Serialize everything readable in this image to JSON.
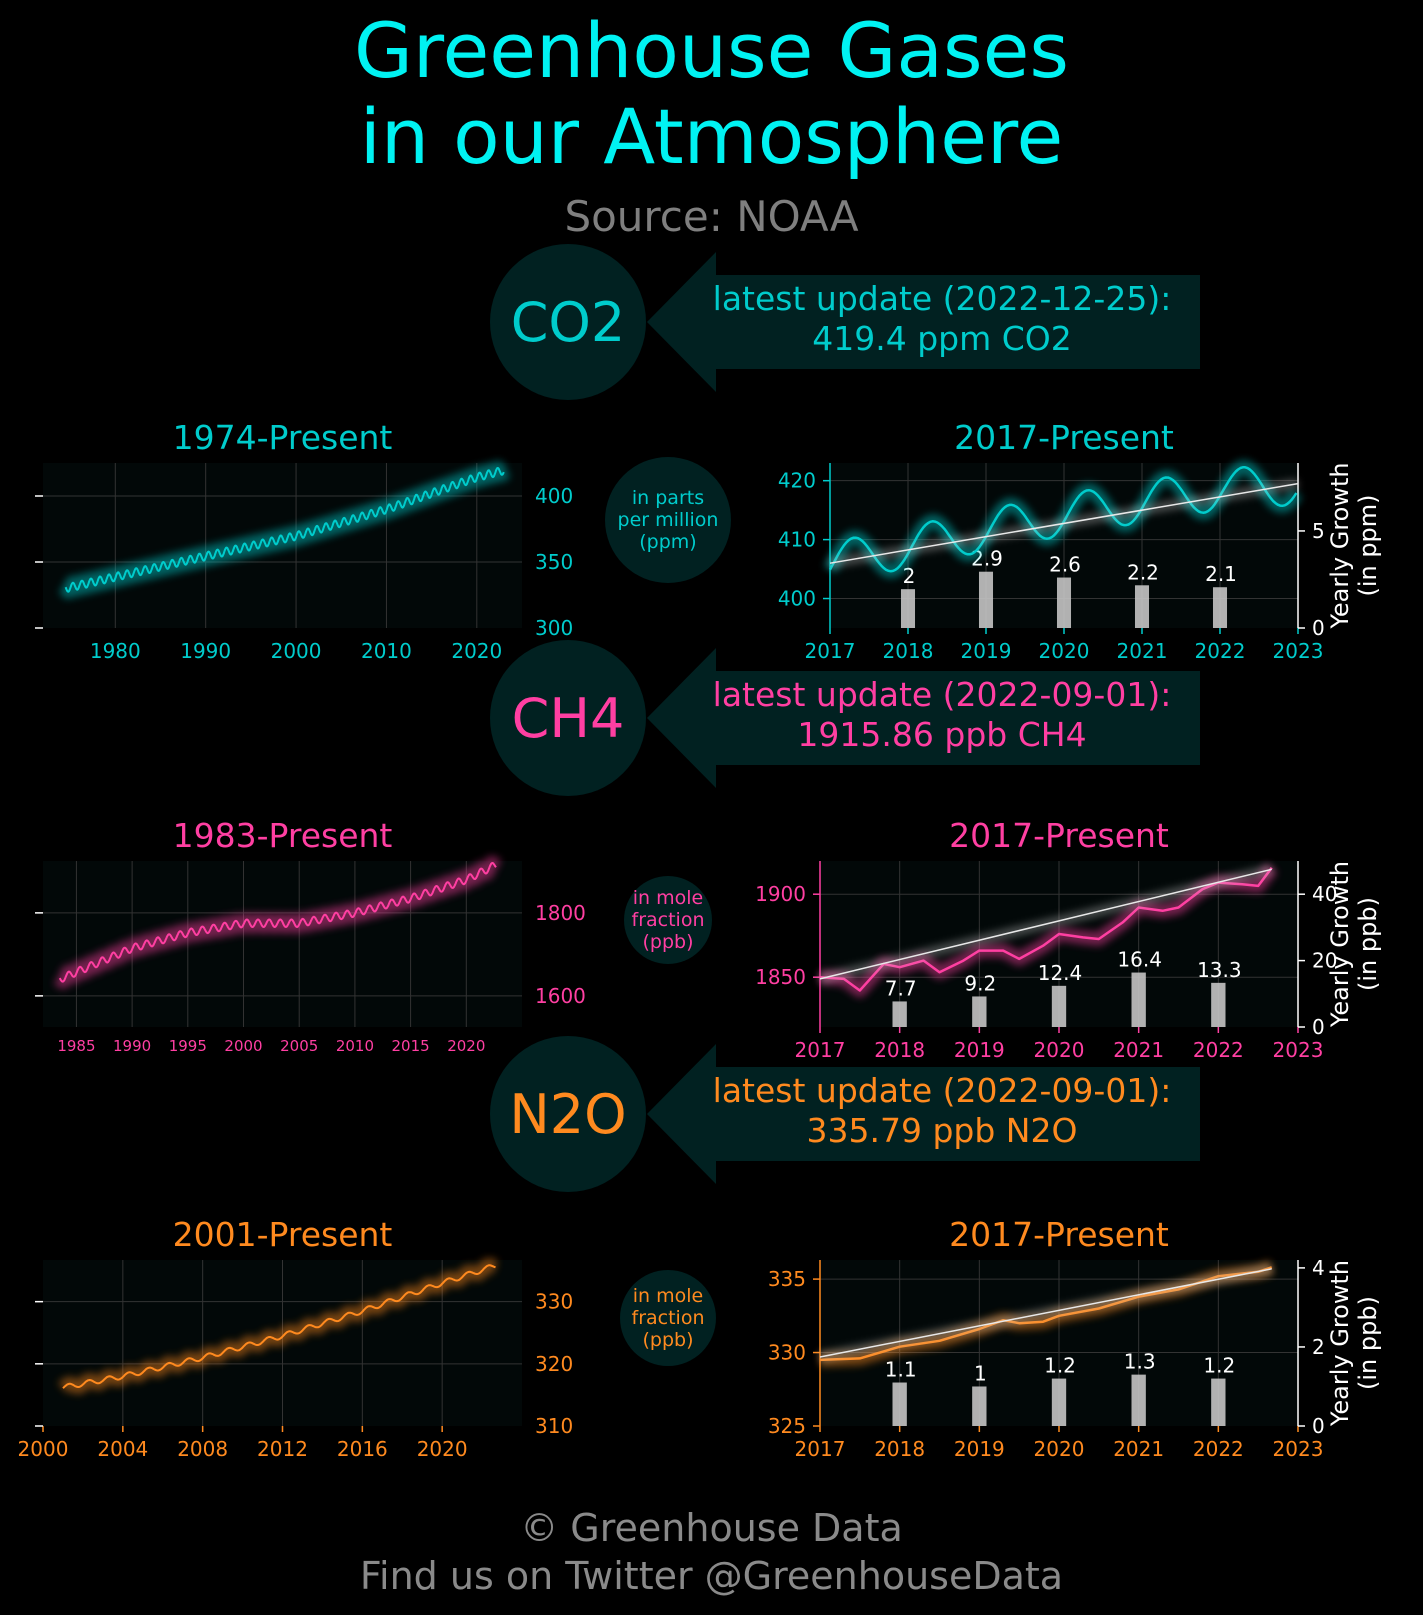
{
  "header": {
    "title_line1": "Greenhouse Gases",
    "title_line2": "in our Atmosphere",
    "source": "Source: NOAA"
  },
  "footer": {
    "copyright": "© Greenhouse Data",
    "twitter": "Find us on Twitter @GreenhouseData"
  },
  "theme": {
    "background": "#000000",
    "panel_bg": "#020808",
    "badge_bg": "#012121",
    "grid": "#333333",
    "growth_bar": "#c4c4c4",
    "growth_text": "#ffffff",
    "title_color": "#00f2f2",
    "muted_text": "#7f7f7f"
  },
  "gases": [
    {
      "id": "co2",
      "label": "CO2",
      "color": "#00cccc",
      "update_line1": "latest update (2022-12-25):",
      "update_line2": "419.4 ppm CO2",
      "unit_lines": [
        "in parts",
        "per million",
        "(ppm)"
      ],
      "long_title": "1974-Present",
      "short_title": "2017-Present",
      "growth_axis_label": [
        "Yearly Growth",
        "(in ppm)"
      ]
    },
    {
      "id": "ch4",
      "label": "CH4",
      "color": "#ff3fa2",
      "update_line1": "latest update (2022-09-01):",
      "update_line2": "1915.86 ppb CH4",
      "unit_lines": [
        "in mole",
        "fraction",
        "(ppb)"
      ],
      "long_title": "1983-Present",
      "short_title": "2017-Present",
      "growth_axis_label": [
        "Yearly Growth",
        "(in ppb)"
      ]
    },
    {
      "id": "n2o",
      "label": "N2O",
      "color": "#ff8a1f",
      "update_line1": "latest update (2022-09-01):",
      "update_line2": "335.79 ppb N2O",
      "unit_lines": [
        "in mole",
        "fraction",
        "(ppb)"
      ],
      "long_title": "2001-Present",
      "short_title": "2017-Present",
      "growth_axis_label": [
        "Yearly Growth",
        "(in ppb)"
      ]
    }
  ],
  "chart_data": [
    {
      "id": "co2-long",
      "type": "line",
      "title": "1974-Present",
      "xlim": [
        1972,
        2025
      ],
      "ylim": [
        300,
        425
      ],
      "xticks": [
        1980,
        1990,
        2000,
        2010,
        2020
      ],
      "yticks": [
        300,
        350,
        400
      ],
      "series": [
        {
          "name": "CO2 (ppm)",
          "start": 1974.5,
          "end": 2022.98,
          "x": [
            1974.5,
            1980,
            1990,
            2000,
            2010,
            2020,
            2022.98
          ],
          "y": [
            330,
            338.7,
            354.4,
            369.7,
            389.9,
            414.2,
            419.4
          ],
          "seasonal_amplitude": 3
        }
      ]
    },
    {
      "id": "co2-short",
      "type": "line",
      "title": "2017-Present",
      "xlim": [
        2017,
        2023
      ],
      "ylim": [
        395,
        423
      ],
      "xticks": [
        2017,
        2018,
        2019,
        2020,
        2021,
        2022,
        2023
      ],
      "yticks": [
        400,
        410,
        420
      ],
      "y2lim": [
        0,
        8.5
      ],
      "y2ticks": [
        0,
        5
      ],
      "series": [
        {
          "name": "CO2 (ppm)",
          "start": 2017,
          "end": 2022.98,
          "x": [
            2017,
            2018,
            2019,
            2020,
            2021,
            2022,
            2022.98
          ],
          "y": [
            406,
            408.7,
            411.6,
            414.2,
            416.4,
            418.5,
            419.4
          ],
          "seasonal_amplitude": 3.5
        }
      ],
      "trend": {
        "x": [
          2017,
          2023
        ],
        "y": [
          406,
          419.5
        ]
      },
      "growth": {
        "categories": [
          2018,
          2019,
          2020,
          2021,
          2022
        ],
        "values": [
          2,
          2.9,
          2.6,
          2.2,
          2.1
        ],
        "labels": [
          "2",
          "2.9",
          "2.6",
          "2.2",
          "2.1"
        ]
      }
    },
    {
      "id": "ch4-long",
      "type": "line",
      "title": "1983-Present",
      "xlim": [
        1982,
        2025
      ],
      "ylim": [
        1525,
        1925
      ],
      "xticks": [
        1985,
        1990,
        1995,
        2000,
        2005,
        2010,
        2015,
        2020
      ],
      "yticks": [
        1600,
        1800
      ],
      "series": [
        {
          "name": "CH4 (ppb)",
          "start": 1983.5,
          "end": 2022.67,
          "x": [
            1983.5,
            1990,
            1995,
            2000,
            2005,
            2010,
            2015,
            2020,
            2022.67
          ],
          "y": [
            1640,
            1715,
            1752,
            1775,
            1775,
            1800,
            1835,
            1880,
            1915.9
          ],
          "seasonal_amplitude": 9
        }
      ]
    },
    {
      "id": "ch4-short",
      "type": "line",
      "title": "2017-Present",
      "xlim": [
        2017,
        2023
      ],
      "ylim": [
        1820,
        1920
      ],
      "xticks": [
        2017,
        2018,
        2019,
        2020,
        2021,
        2022,
        2023
      ],
      "yticks": [
        1850,
        1900
      ],
      "y2lim": [
        0,
        50
      ],
      "y2ticks": [
        0,
        20,
        40
      ],
      "series": [
        {
          "name": "CH4 (ppb)",
          "start": 2017,
          "end": 2022.67,
          "x": [
            2017,
            2017.3,
            2017.5,
            2017.8,
            2018,
            2018.3,
            2018.5,
            2018.8,
            2019,
            2019.3,
            2019.5,
            2019.8,
            2020,
            2020.3,
            2020.5,
            2020.8,
            2021,
            2021.3,
            2021.5,
            2021.8,
            2022,
            2022.3,
            2022.5,
            2022.67
          ],
          "y": [
            1850,
            1849,
            1842,
            1858,
            1856,
            1860,
            1853,
            1860,
            1866,
            1866,
            1861,
            1869,
            1876,
            1874,
            1873,
            1883,
            1892,
            1890,
            1892,
            1903,
            1907,
            1906,
            1905,
            1915.9
          ],
          "seasonal_amplitude": 0
        }
      ],
      "trend": {
        "x": [
          2017,
          2022.67
        ],
        "y": [
          1849,
          1915
        ]
      },
      "growth": {
        "categories": [
          2018,
          2019,
          2020,
          2021,
          2022
        ],
        "values": [
          7.7,
          9.2,
          12.4,
          16.4,
          13.3
        ],
        "labels": [
          "7.7",
          "9.2",
          "12.4",
          "16.4",
          "13.3"
        ]
      }
    },
    {
      "id": "n2o-long",
      "type": "line",
      "title": "2001-Present",
      "xlim": [
        2000,
        2024
      ],
      "ylim": [
        310,
        336.7
      ],
      "xticks": [
        2000,
        2004,
        2008,
        2012,
        2016,
        2020
      ],
      "yticks": [
        310,
        320,
        330
      ],
      "series": [
        {
          "name": "N2O (ppb)",
          "start": 2001,
          "end": 2022.67,
          "x": [
            2001,
            2004,
            2008,
            2012,
            2016,
            2020,
            2022.67
          ],
          "y": [
            316.2,
            318,
            321,
            324.5,
            328.5,
            333,
            335.8
          ],
          "seasonal_amplitude": 0.4
        }
      ]
    },
    {
      "id": "n2o-short",
      "type": "line",
      "title": "2017-Present",
      "xlim": [
        2017,
        2023
      ],
      "ylim": [
        325,
        336.3
      ],
      "xticks": [
        2017,
        2018,
        2019,
        2020,
        2021,
        2022,
        2023
      ],
      "yticks": [
        325,
        330,
        335
      ],
      "y2lim": [
        0,
        4.2
      ],
      "y2ticks": [
        0,
        2,
        4
      ],
      "series": [
        {
          "name": "N2O (ppb)",
          "start": 2017,
          "end": 2022.67,
          "x": [
            2017,
            2017.5,
            2018,
            2018.5,
            2019,
            2019.3,
            2019.5,
            2019.8,
            2020,
            2020.5,
            2021,
            2021.5,
            2022,
            2022.5,
            2022.67
          ],
          "y": [
            329.5,
            329.6,
            330.4,
            330.8,
            331.6,
            332.2,
            332,
            332.1,
            332.5,
            333,
            333.8,
            334.3,
            335.2,
            335.5,
            335.8
          ],
          "seasonal_amplitude": 0
        }
      ],
      "trend": {
        "x": [
          2017,
          2022.67
        ],
        "y": [
          329.7,
          335.7
        ]
      },
      "growth": {
        "categories": [
          2018,
          2019,
          2020,
          2021,
          2022
        ],
        "values": [
          1.1,
          1,
          1.2,
          1.3,
          1.2
        ],
        "labels": [
          "1.1",
          "1",
          "1.2",
          "1.3",
          "1.2"
        ]
      }
    }
  ]
}
